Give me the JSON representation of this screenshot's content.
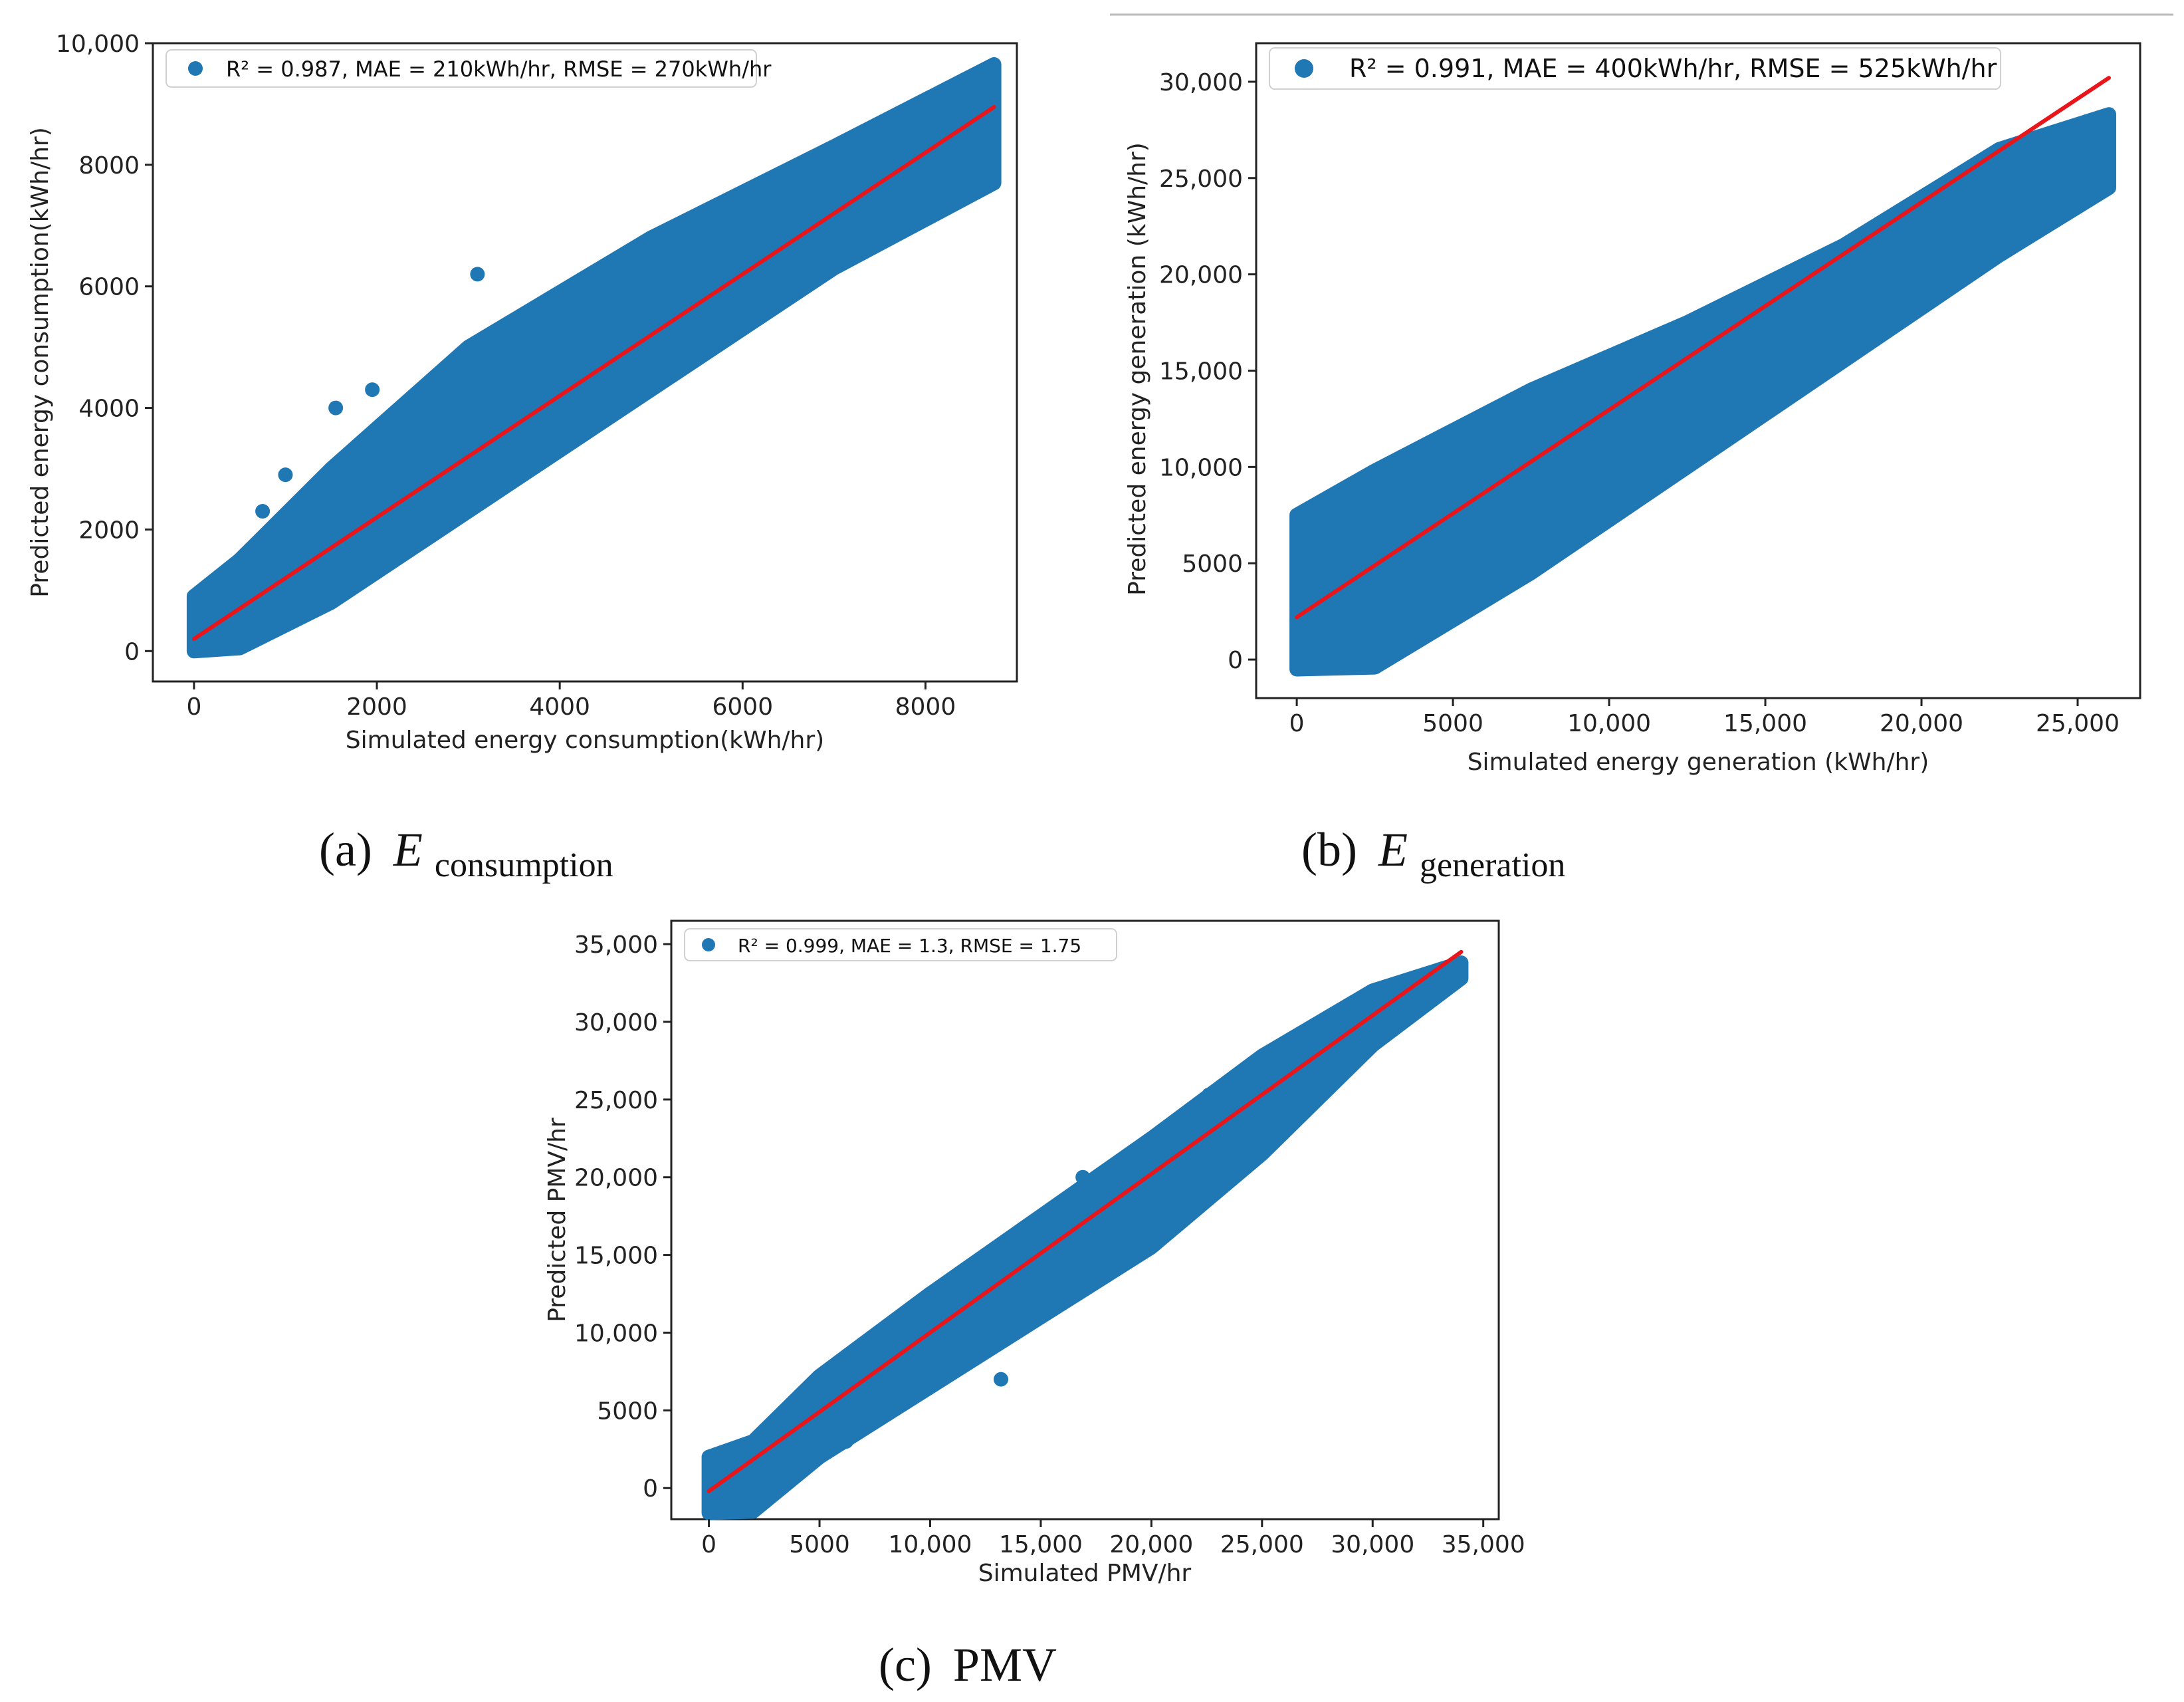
{
  "colors": {
    "scatter": "#1f77b4",
    "fit_line": "#e8161b",
    "frame": "#222222"
  },
  "captions": [
    {
      "prefix": "(a)",
      "symbol": "E",
      "subscript": "consumption"
    },
    {
      "prefix": "(b)",
      "symbol": "E",
      "subscript": "generation"
    },
    {
      "prefix": "(c)",
      "symbol": "PMV",
      "subscript": ""
    }
  ],
  "chart_data": [
    {
      "type": "scatter",
      "id": "a",
      "title": "",
      "xlabel": "Simulated energy consumption(kWh/hr)",
      "ylabel": "Predicted energy consumption(kWh/hr)",
      "xlim": [
        -450,
        9000
      ],
      "ylim": [
        -500,
        10000
      ],
      "xticks": [
        0,
        2000,
        4000,
        6000,
        8000
      ],
      "xtick_labels": [
        "0",
        "2000",
        "4000",
        "6000",
        "8000"
      ],
      "yticks": [
        0,
        2000,
        4000,
        6000,
        8000,
        10000
      ],
      "ytick_labels": [
        "0",
        "2000",
        "4000",
        "6000",
        "8000",
        "10,000"
      ],
      "legend": "R² = 0.987, MAE = 210kWh/hr, RMSE = 270kWh/hr",
      "legend_position": "upper-left",
      "fit_line": {
        "x": [
          0,
          8750
        ],
        "y": [
          200,
          8950
        ]
      },
      "scatter_band": {
        "x": [
          0,
          500,
          1500,
          3000,
          5000,
          7000,
          8750
        ],
        "upper": [
          900,
          1500,
          3000,
          5000,
          6800,
          8300,
          9650
        ],
        "lower": [
          0,
          50,
          800,
          2300,
          4300,
          6300,
          7700
        ]
      },
      "outliers": [
        {
          "x": 3100,
          "y": 6200
        },
        {
          "x": 1950,
          "y": 4300
        },
        {
          "x": 1550,
          "y": 4000
        },
        {
          "x": 1000,
          "y": 2900
        },
        {
          "x": 750,
          "y": 2300
        },
        {
          "x": 0,
          "y": 900
        }
      ]
    },
    {
      "type": "scatter",
      "id": "b",
      "title": "",
      "xlabel": "Simulated energy generation (kWh/hr)",
      "ylabel": "Predicted energy generation (kWh/hr)",
      "xlim": [
        -1300,
        27000
      ],
      "ylim": [
        -2000,
        32000
      ],
      "xticks": [
        0,
        5000,
        10000,
        15000,
        20000,
        25000
      ],
      "xtick_labels": [
        "0",
        "5000",
        "10,000",
        "15,000",
        "20,000",
        "25,000"
      ],
      "yticks": [
        0,
        5000,
        10000,
        15000,
        20000,
        25000,
        30000
      ],
      "ytick_labels": [
        "0",
        "5000",
        "10,000",
        "15,000",
        "20,000",
        "25,000",
        "30,000"
      ],
      "legend": "R² = 0.991, MAE = 400kWh/hr, RMSE = 525kWh/hr",
      "legend_position": "upper-left",
      "fit_line": {
        "x": [
          0,
          26000
        ],
        "y": [
          2200,
          30200
        ]
      },
      "scatter_band": {
        "x": [
          0,
          2500,
          7500,
          12500,
          17500,
          22500,
          26000
        ],
        "upper": [
          7500,
          9800,
          14000,
          17500,
          21500,
          26500,
          28300
        ],
        "lower": [
          -500,
          -400,
          4500,
          10000,
          15500,
          21000,
          24500
        ]
      },
      "outliers": [
        {
          "x": 6300,
          "y": 4500
        },
        {
          "x": 1500,
          "y": -400
        },
        {
          "x": 25800,
          "y": 26700
        },
        {
          "x": 24700,
          "y": 24500
        },
        {
          "x": 4000,
          "y": 1500
        }
      ]
    },
    {
      "type": "scatter",
      "id": "c",
      "title": "",
      "xlabel": "Simulated PMV/hr",
      "ylabel": "Predicted PMV/hr",
      "xlim": [
        -1700,
        35700
      ],
      "ylim": [
        -2000,
        36500
      ],
      "xticks": [
        0,
        5000,
        10000,
        15000,
        20000,
        25000,
        30000,
        35000
      ],
      "xtick_labels": [
        "0",
        "5000",
        "10,000",
        "15,000",
        "20,000",
        "25,000",
        "30,000",
        "35,000"
      ],
      "yticks": [
        0,
        5000,
        10000,
        15000,
        20000,
        25000,
        30000,
        35000
      ],
      "ytick_labels": [
        "0",
        "5000",
        "10,000",
        "15,000",
        "20,000",
        "25,000",
        "30,000",
        "35,000"
      ],
      "legend": "R² = 0.999, MAE = 1.3, RMSE = 1.75",
      "legend_position": "upper-left",
      "fit_line": {
        "x": [
          0,
          34000
        ],
        "y": [
          -200,
          34500
        ]
      },
      "scatter_band": {
        "x": [
          0,
          2000,
          5000,
          10000,
          15000,
          20000,
          25000,
          30000,
          34000
        ],
        "upper": [
          2000,
          3000,
          7200,
          12500,
          17500,
          22500,
          27800,
          32000,
          33800
        ],
        "lower": [
          -1600,
          -1500,
          2000,
          6500,
          11000,
          15500,
          21500,
          28500,
          32800
        ]
      },
      "outliers": [
        {
          "x": 6200,
          "y": 3000
        },
        {
          "x": 13200,
          "y": 7000
        },
        {
          "x": 9500,
          "y": 9500
        },
        {
          "x": 16900,
          "y": 20000
        },
        {
          "x": 22600,
          "y": 25300
        },
        {
          "x": 5100,
          "y": 6800
        }
      ]
    }
  ]
}
